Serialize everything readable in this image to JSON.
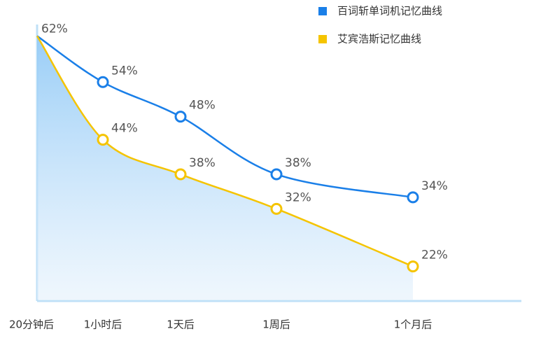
{
  "chart_data": {
    "type": "line",
    "categories": [
      "20分钟后",
      "1小时后",
      "1天后",
      "1周后",
      "1个月后"
    ],
    "series": [
      {
        "name": "百词斩单词机记忆曲线",
        "color": "#1a7fe8",
        "values": [
          62,
          54,
          48,
          38,
          34
        ],
        "value_labels": [
          "62%",
          "54%",
          "48%",
          "38%",
          "34%"
        ]
      },
      {
        "name": "艾宾浩斯记忆曲线",
        "color": "#f5c400",
        "values": [
          62,
          44,
          38,
          32,
          22
        ],
        "value_labels": [
          null,
          "44%",
          "38%",
          "32%",
          "22%"
        ]
      }
    ],
    "ylim": [
      16,
      64
    ],
    "legend": "top-right"
  }
}
